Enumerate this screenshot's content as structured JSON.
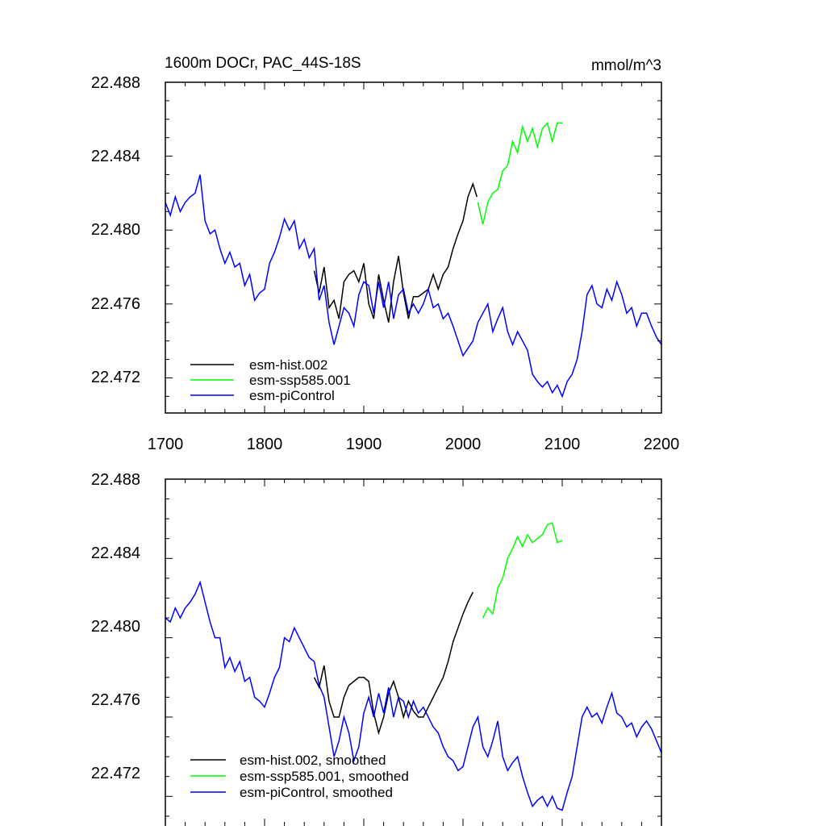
{
  "chart_data": [
    {
      "type": "line",
      "title": "1600m DOCr, PAC_44S-18S",
      "units": "mmol/m^3",
      "xlim": [
        1700,
        2200
      ],
      "ylim": [
        22.4701,
        22.488
      ],
      "xticks": [
        "1700",
        "1800",
        "1900",
        "2000",
        "2100",
        "2200"
      ],
      "yticks": [
        "22.472",
        "22.476",
        "22.480",
        "22.484",
        "22.488"
      ],
      "legend_position": "bottom-left",
      "series": [
        {
          "name": "esm-hist.002",
          "color": "#000000",
          "x": [
            1850,
            1855,
            1860,
            1865,
            1870,
            1875,
            1880,
            1885,
            1890,
            1895,
            1900,
            1905,
            1910,
            1915,
            1920,
            1925,
            1930,
            1935,
            1940,
            1945,
            1950,
            1955,
            1960,
            1965,
            1970,
            1975,
            1980,
            1985,
            1990,
            1995,
            2000,
            2005,
            2010,
            2014
          ],
          "y": [
            22.4778,
            22.4766,
            22.478,
            22.4758,
            22.4762,
            22.4752,
            22.4772,
            22.4776,
            22.4778,
            22.4772,
            22.4782,
            22.476,
            22.4752,
            22.4776,
            22.4762,
            22.475,
            22.4772,
            22.4786,
            22.4766,
            22.4752,
            22.4764,
            22.4764,
            22.4766,
            22.4768,
            22.4776,
            22.4768,
            22.4776,
            22.478,
            22.479,
            22.4798,
            22.4805,
            22.4818,
            22.4825,
            22.4818
          ]
        },
        {
          "name": "esm-ssp585.001",
          "color": "#00ff00",
          "x": [
            2015,
            2020,
            2025,
            2030,
            2035,
            2040,
            2045,
            2050,
            2055,
            2060,
            2065,
            2070,
            2075,
            2080,
            2085,
            2090,
            2095,
            2100
          ],
          "y": [
            22.4815,
            22.4803,
            22.4815,
            22.482,
            22.4822,
            22.4832,
            22.4835,
            22.4848,
            22.4842,
            22.4856,
            22.4848,
            22.4855,
            22.4845,
            22.4855,
            22.4858,
            22.4848,
            22.4858,
            22.4858
          ]
        },
        {
          "name": "esm-piControl",
          "color": "#0000ff",
          "x": [
            1700,
            1705,
            1710,
            1715,
            1720,
            1725,
            1730,
            1735,
            1740,
            1745,
            1750,
            1755,
            1760,
            1765,
            1770,
            1775,
            1780,
            1785,
            1790,
            1795,
            1800,
            1805,
            1810,
            1815,
            1820,
            1825,
            1830,
            1835,
            1840,
            1845,
            1850,
            1855,
            1860,
            1865,
            1870,
            1875,
            1880,
            1885,
            1890,
            1895,
            1900,
            1905,
            1910,
            1915,
            1920,
            1925,
            1930,
            1935,
            1940,
            1945,
            1950,
            1955,
            1960,
            1965,
            1970,
            1975,
            1980,
            1985,
            1990,
            1995,
            2000,
            2005,
            2010,
            2015,
            2020,
            2025,
            2030,
            2035,
            2040,
            2045,
            2050,
            2055,
            2060,
            2065,
            2070,
            2075,
            2080,
            2085,
            2090,
            2095,
            2100,
            2105,
            2110,
            2115,
            2120,
            2125,
            2130,
            2135,
            2140,
            2145,
            2150,
            2155,
            2160,
            2165,
            2170,
            2175,
            2180,
            2185,
            2190,
            2195,
            2200
          ],
          "y": [
            22.4815,
            22.4808,
            22.4818,
            22.481,
            22.4815,
            22.4818,
            22.482,
            22.483,
            22.4805,
            22.4798,
            22.48,
            22.479,
            22.4782,
            22.4788,
            22.478,
            22.4782,
            22.477,
            22.4776,
            22.4762,
            22.4766,
            22.4768,
            22.4782,
            22.4788,
            22.4796,
            22.4806,
            22.48,
            22.4805,
            22.479,
            22.4795,
            22.4785,
            22.479,
            22.4762,
            22.477,
            22.475,
            22.4738,
            22.4748,
            22.4758,
            22.4755,
            22.4748,
            22.4765,
            22.4772,
            22.477,
            22.4755,
            22.4772,
            22.4758,
            22.4772,
            22.4752,
            22.4765,
            22.4768,
            22.4755,
            22.476,
            22.4755,
            22.476,
            22.4768,
            22.4758,
            22.476,
            22.4752,
            22.4755,
            22.4748,
            22.474,
            22.4732,
            22.4736,
            22.474,
            22.475,
            22.4755,
            22.476,
            22.4745,
            22.4752,
            22.4758,
            22.4745,
            22.4738,
            22.4745,
            22.474,
            22.4735,
            22.4722,
            22.4718,
            22.4715,
            22.4718,
            22.4712,
            22.4716,
            22.471,
            22.4718,
            22.4722,
            22.473,
            22.4745,
            22.4765,
            22.477,
            22.476,
            22.4758,
            22.4768,
            22.4762,
            22.4772,
            22.4765,
            22.4755,
            22.4758,
            22.4748,
            22.4755,
            22.4755,
            22.4748,
            22.4742,
            22.4738
          ]
        }
      ]
    },
    {
      "type": "line",
      "xlim": [
        1700,
        2200
      ],
      "ylim": [
        22.4701,
        22.488
      ],
      "yticks": [
        "22.472",
        "22.476",
        "22.480",
        "22.484",
        "22.488"
      ],
      "legend_position": "bottom-left",
      "series": [
        {
          "name": "esm-hist.002, smoothed",
          "color": "#000000",
          "x": [
            1850,
            1855,
            1860,
            1865,
            1870,
            1875,
            1880,
            1885,
            1890,
            1895,
            1900,
            1905,
            1910,
            1915,
            1920,
            1925,
            1930,
            1935,
            1940,
            1945,
            1950,
            1955,
            1960,
            1965,
            1970,
            1975,
            1980,
            1985,
            1990,
            1995,
            2000,
            2005,
            2010
          ],
          "y": [
            22.478,
            22.4775,
            22.4786,
            22.4768,
            22.476,
            22.476,
            22.477,
            22.4776,
            22.4778,
            22.478,
            22.478,
            22.4778,
            22.4762,
            22.4752,
            22.476,
            22.4772,
            22.4778,
            22.477,
            22.476,
            22.4768,
            22.4763,
            22.476,
            22.476,
            22.4765,
            22.477,
            22.4775,
            22.478,
            22.4788,
            22.4798,
            22.4805,
            22.4812,
            22.4818,
            22.4823
          ]
        },
        {
          "name": "esm-ssp585.001, smoothed",
          "color": "#00ff00",
          "x": [
            2020,
            2025,
            2030,
            2035,
            2040,
            2045,
            2050,
            2055,
            2060,
            2065,
            2070,
            2075,
            2080,
            2085,
            2090,
            2095,
            2100
          ],
          "y": [
            22.481,
            22.4815,
            22.4812,
            22.4825,
            22.483,
            22.484,
            22.4845,
            22.4851,
            22.4846,
            22.4852,
            22.4848,
            22.485,
            22.4852,
            22.4857,
            22.4858,
            22.4848,
            22.4849
          ]
        },
        {
          "name": "esm-piControl, smoothed",
          "color": "#0000ff",
          "x": [
            1700,
            1705,
            1710,
            1715,
            1720,
            1725,
            1730,
            1735,
            1740,
            1745,
            1750,
            1755,
            1760,
            1765,
            1770,
            1775,
            1780,
            1785,
            1790,
            1795,
            1800,
            1805,
            1810,
            1815,
            1820,
            1825,
            1830,
            1835,
            1840,
            1845,
            1850,
            1855,
            1860,
            1865,
            1870,
            1875,
            1880,
            1885,
            1890,
            1895,
            1900,
            1905,
            1910,
            1915,
            1920,
            1925,
            1930,
            1935,
            1940,
            1945,
            1950,
            1955,
            1960,
            1965,
            1970,
            1975,
            1980,
            1985,
            1990,
            1995,
            2000,
            2005,
            2010,
            2015,
            2020,
            2025,
            2030,
            2035,
            2040,
            2045,
            2050,
            2055,
            2060,
            2065,
            2070,
            2075,
            2080,
            2085,
            2090,
            2095,
            2100,
            2105,
            2110,
            2115,
            2120,
            2125,
            2130,
            2135,
            2140,
            2145,
            2150,
            2155,
            2160,
            2165,
            2170,
            2175,
            2180,
            2185,
            2190,
            2195,
            2200
          ],
          "y": [
            22.481,
            22.4808,
            22.4815,
            22.481,
            22.4815,
            22.4818,
            22.4822,
            22.4828,
            22.4818,
            22.4808,
            22.48,
            22.48,
            22.4785,
            22.479,
            22.4783,
            22.4788,
            22.4778,
            22.478,
            22.477,
            22.4768,
            22.4765,
            22.4772,
            22.478,
            22.4785,
            22.48,
            22.4798,
            22.4805,
            22.48,
            22.4795,
            22.479,
            22.4788,
            22.4776,
            22.477,
            22.4755,
            22.474,
            22.4748,
            22.476,
            22.4752,
            22.4738,
            22.4745,
            22.4762,
            22.477,
            22.476,
            22.4772,
            22.4762,
            22.4775,
            22.476,
            22.477,
            22.4768,
            22.476,
            22.4768,
            22.4762,
            22.4765,
            22.476,
            22.4755,
            22.4752,
            22.4745,
            22.474,
            22.4738,
            22.4733,
            22.4735,
            22.4745,
            22.4755,
            22.476,
            22.4745,
            22.474,
            22.4748,
            22.4758,
            22.474,
            22.4733,
            22.4737,
            22.474,
            22.473,
            22.4722,
            22.4715,
            22.4718,
            22.472,
            22.4715,
            22.472,
            22.4714,
            22.4713,
            22.4722,
            22.473,
            22.4745,
            22.476,
            22.4765,
            22.476,
            22.4762,
            22.4757,
            22.4765,
            22.4772,
            22.4762,
            22.476,
            22.4755,
            22.4757,
            22.475,
            22.4755,
            22.4758,
            22.4754,
            22.4748,
            22.4742
          ]
        }
      ]
    }
  ]
}
